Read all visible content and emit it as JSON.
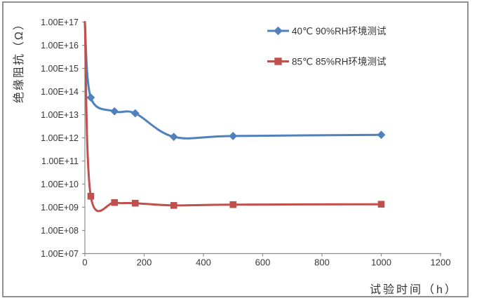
{
  "frame": {
    "border_color": "#919191",
    "background": "#ffffff"
  },
  "colors": {
    "axis": "#8c8c8c",
    "tick_text": "#363636",
    "title_text": "#333333",
    "series_blue": "#4F81BD",
    "series_red": "#C0504D"
  },
  "chart_data": {
    "type": "line",
    "title": "",
    "xlabel": "试验时间（h）",
    "ylabel": "绝缘阻抗（Ω）",
    "x_scale": "linear",
    "y_scale": "log10",
    "xlim": [
      0,
      1200
    ],
    "ylim": [
      10000000.0,
      1e+17
    ],
    "grid": false,
    "legend_position": "upper-right-inside",
    "x_ticks": [
      0,
      200,
      400,
      600,
      800,
      1000,
      1200
    ],
    "y_tick_labels": [
      "1.00E+17",
      "1.00E+16",
      "1.00E+15",
      "1.00E+14",
      "1.00E+13",
      "1.00E+12",
      "1.00E+11",
      "1.00E+10",
      "1.00E+09",
      "1.00E+08",
      "1.00E+07"
    ],
    "y_tick_exponents": [
      17,
      16,
      15,
      14,
      13,
      12,
      11,
      10,
      9,
      8,
      7
    ],
    "series": [
      {
        "name": "40℃ 90%RH环境测试",
        "color": "#4F81BD",
        "marker": "diamond",
        "smooth": true,
        "x": [
          0,
          20,
          100,
          170,
          300,
          500,
          1000
        ],
        "y": [
          1e+17,
          55000000000000.0,
          14000000000000.0,
          11500000000000.0,
          1100000000000.0,
          1200000000000.0,
          1350000000000.0
        ]
      },
      {
        "name": "85℃ 85%RH环境测试",
        "color": "#C0504D",
        "marker": "square",
        "smooth": true,
        "x": [
          0,
          20,
          100,
          170,
          300,
          500,
          1000
        ],
        "y": [
          1e+17,
          3000000000.0,
          1600000000.0,
          1500000000.0,
          1200000000.0,
          1300000000.0,
          1350000000.0
        ]
      }
    ]
  }
}
